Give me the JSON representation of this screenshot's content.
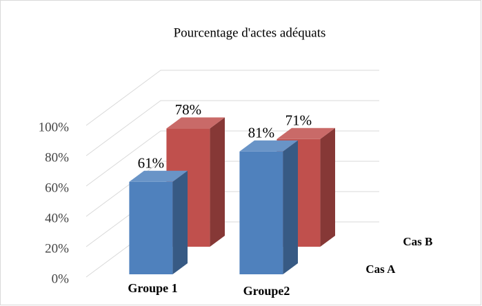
{
  "chart_data": {
    "type": "bar3d",
    "title": "Pourcentage d'actes adéquats",
    "categories": [
      "Groupe 1",
      "Groupe2"
    ],
    "series": [
      {
        "name": "Cas A",
        "color": "#4f81bd",
        "values": [
          61,
          81
        ],
        "value_labels": [
          "61%",
          "81%"
        ]
      },
      {
        "name": "Cas B",
        "color": "#c0504d",
        "values": [
          78,
          71
        ],
        "value_labels": [
          "78%",
          "71%"
        ]
      }
    ],
    "ylim": [
      0,
      100
    ],
    "yticks": [
      {
        "value": 0,
        "label": "0%"
      },
      {
        "value": 20,
        "label": "20%"
      },
      {
        "value": 40,
        "label": "40%"
      },
      {
        "value": 60,
        "label": "60%"
      },
      {
        "value": 80,
        "label": "80%"
      },
      {
        "value": 100,
        "label": "100%"
      }
    ],
    "grid": true
  }
}
